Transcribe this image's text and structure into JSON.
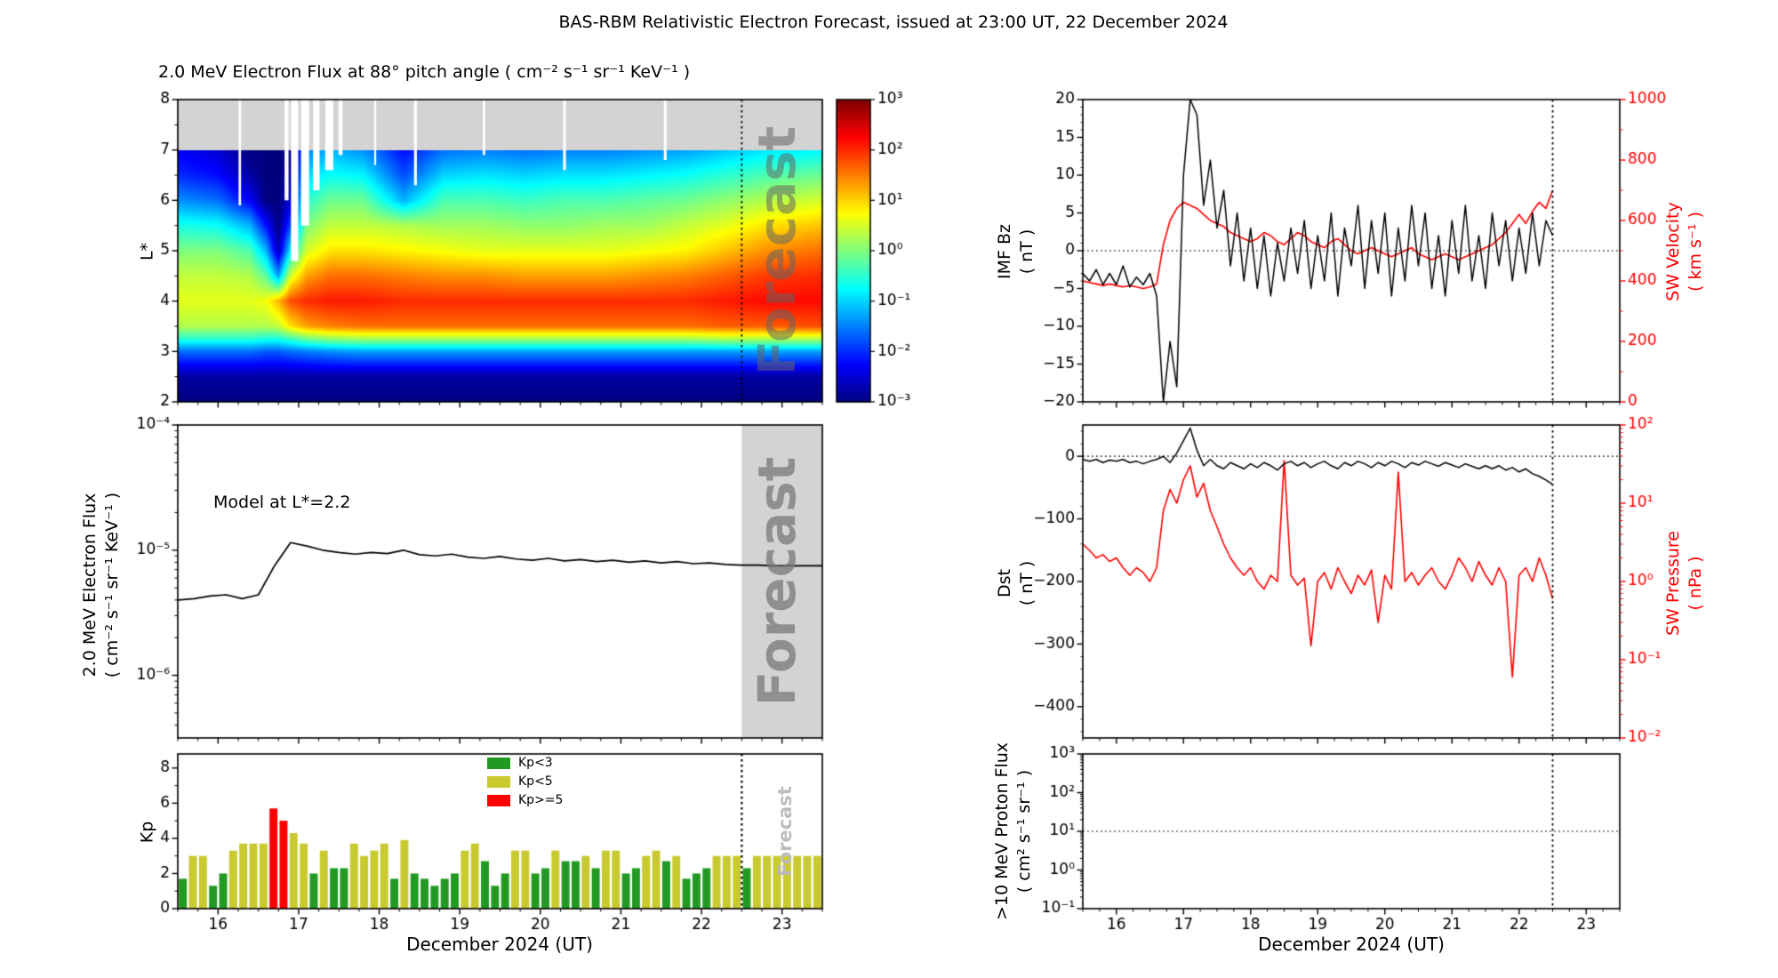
{
  "figure_title": "BAS-RBM Relativistic Electron Forecast, issued at 23:00 UT, 22 December 2024",
  "forecast_label": "Forecast",
  "time_axis": {
    "xlabel": "December 2024 (UT)",
    "range": [
      15.5,
      23.5
    ],
    "major_ticks": [
      16,
      17,
      18,
      19,
      20,
      21,
      22,
      23
    ],
    "forecast_start": 22.5
  },
  "colors": {
    "accent_red": "#ff0000",
    "kp_green": "#229922",
    "kp_yellow": "#c9c930",
    "kp_red": "#ff0000",
    "forecast_band": "#d3d3d3",
    "nodata_gray": "#d3d3d3"
  },
  "chart_data": [
    {
      "id": "electron_flux_heatmap",
      "type": "heatmap",
      "title": "2.0 MeV Electron Flux at 88° pitch angle ( cm⁻² s⁻¹ sr⁻¹ KeV⁻¹ )",
      "ylabel": "L*",
      "ylim": [
        2,
        8
      ],
      "y_ticks": [
        2,
        3,
        4,
        5,
        6,
        7,
        8
      ],
      "nodata_above_L": 7,
      "clim_log10": [
        -3,
        3
      ],
      "colorbar_ticks": [
        "10³",
        "10²",
        "10¹",
        "10⁰",
        "10⁻¹",
        "10⁻²",
        "10⁻³"
      ],
      "colorbar_tick_exps": [
        3,
        2,
        1,
        0,
        -1,
        -2,
        -3
      ],
      "forecast_line_t": 22.5,
      "t_values": [
        15.5,
        16.0,
        16.4,
        16.6,
        16.75,
        16.9,
        17.1,
        17.4,
        17.8,
        18.3,
        18.8,
        19.3,
        19.8,
        20.3,
        20.8,
        21.3,
        21.8,
        22.3,
        22.8,
        23.5
      ],
      "L_values": [
        2.0,
        2.5,
        3.0,
        3.25,
        3.5,
        4.0,
        4.5,
        5.0,
        5.5,
        6.0,
        6.5,
        7.0
      ],
      "log10_flux": [
        [
          -3.0,
          -3.0,
          -3.0,
          -3.0,
          -3.0,
          -3.0,
          -3.0,
          -3.0,
          -3.0,
          -3.0,
          -3.0,
          -3.0,
          -3.0,
          -3.0,
          -3.0,
          -3.0,
          -3.0,
          -3.0,
          -3.0,
          -3.0
        ],
        [
          -2.8,
          -2.8,
          -2.8,
          -2.8,
          -2.8,
          -2.8,
          -2.8,
          -2.8,
          -2.8,
          -2.8,
          -2.8,
          -2.8,
          -2.8,
          -2.8,
          -2.8,
          -2.8,
          -2.8,
          -2.8,
          -2.8,
          -2.8
        ],
        [
          -1.6,
          -1.6,
          -1.6,
          -1.7,
          -1.7,
          -1.6,
          -1.5,
          -1.4,
          -1.3,
          -1.3,
          -1.3,
          -1.3,
          -1.3,
          -1.3,
          -1.3,
          -1.3,
          -1.3,
          -1.3,
          -1.3,
          -1.3
        ],
        [
          -0.5,
          -0.5,
          -0.5,
          -0.6,
          -0.6,
          -0.4,
          -0.1,
          0.1,
          0.2,
          0.2,
          0.2,
          0.2,
          0.2,
          0.2,
          0.2,
          0.2,
          0.2,
          0.3,
          0.3,
          0.3
        ],
        [
          0.3,
          0.3,
          0.3,
          0.3,
          0.4,
          0.9,
          1.3,
          1.5,
          1.6,
          1.6,
          1.6,
          1.6,
          1.6,
          1.6,
          1.6,
          1.6,
          1.6,
          1.7,
          1.7,
          1.8
        ],
        [
          0.6,
          0.6,
          0.6,
          0.7,
          1.2,
          1.8,
          2.0,
          2.1,
          2.1,
          2.0,
          2.0,
          2.0,
          2.0,
          2.0,
          2.0,
          2.0,
          2.0,
          2.1,
          2.2,
          2.2
        ],
        [
          0.4,
          0.4,
          0.3,
          -0.2,
          -1.3,
          0.5,
          1.3,
          1.6,
          1.6,
          1.5,
          1.4,
          1.4,
          1.3,
          1.3,
          1.3,
          1.4,
          1.5,
          1.7,
          1.9,
          2.0
        ],
        [
          0.0,
          0.0,
          -0.3,
          -1.2,
          -2.7,
          -0.8,
          0.5,
          0.9,
          0.9,
          0.8,
          0.7,
          0.6,
          0.6,
          0.6,
          0.6,
          0.7,
          0.8,
          1.1,
          1.4,
          1.6
        ],
        [
          -0.6,
          -0.7,
          -1.2,
          -2.2,
          -3.0,
          -1.8,
          0.0,
          0.4,
          0.4,
          0.3,
          0.2,
          0.2,
          0.1,
          0.1,
          0.2,
          0.2,
          0.4,
          0.6,
          0.9,
          1.1
        ],
        [
          -1.4,
          -1.6,
          -2.3,
          -3.0,
          -3.0,
          -2.5,
          -0.5,
          -0.1,
          -0.1,
          -1.2,
          -0.3,
          -0.3,
          -0.4,
          -0.3,
          -0.3,
          -0.2,
          -0.1,
          0.1,
          0.3,
          0.5
        ],
        [
          -2.0,
          -2.2,
          -2.8,
          -3.0,
          -3.0,
          -2.8,
          -1.0,
          -0.7,
          -0.8,
          -1.8,
          -1.0,
          -0.9,
          -1.0,
          -0.9,
          -0.9,
          -0.8,
          -0.7,
          -0.5,
          -0.3,
          -0.1
        ],
        [
          -2.3,
          -2.5,
          -3.0,
          -3.0,
          -3.0,
          -3.0,
          -1.5,
          -1.2,
          -1.4,
          -2.2,
          -1.6,
          -1.5,
          -1.6,
          -1.5,
          -1.5,
          -1.4,
          -1.3,
          -1.1,
          -0.9,
          -0.8
        ]
      ],
      "data_gaps": [
        {
          "t": 16.27,
          "w": 0.03,
          "to_L": 5.9
        },
        {
          "t": 16.85,
          "w": 0.05,
          "to_L": 6.0
        },
        {
          "t": 16.95,
          "w": 0.09,
          "to_L": 4.8
        },
        {
          "t": 17.08,
          "w": 0.1,
          "to_L": 5.5
        },
        {
          "t": 17.22,
          "w": 0.08,
          "to_L": 6.2
        },
        {
          "t": 17.38,
          "w": 0.1,
          "to_L": 6.6
        },
        {
          "t": 17.52,
          "w": 0.05,
          "to_L": 6.9
        },
        {
          "t": 17.95,
          "w": 0.025,
          "to_L": 6.7
        },
        {
          "t": 18.45,
          "w": 0.035,
          "to_L": 6.3
        },
        {
          "t": 19.3,
          "w": 0.03,
          "to_L": 6.9
        },
        {
          "t": 20.3,
          "w": 0.035,
          "to_L": 6.6
        },
        {
          "t": 21.55,
          "w": 0.035,
          "to_L": 6.8
        }
      ]
    },
    {
      "id": "model_flux_line",
      "type": "line",
      "annotation": "Model at L*=2.2",
      "ylabel_line1": "2.0 MeV Electron Flux",
      "ylabel_line2": "( cm⁻² s⁻¹ sr⁻¹ KeV⁻¹ )",
      "y_ticks": [
        "10⁻⁴",
        "10⁻⁵",
        "10⁻⁶"
      ],
      "y_tick_exps": [
        -4,
        -5,
        -6
      ],
      "ylim_log10": [
        -6.5,
        -4
      ],
      "t_start": 15.5,
      "t_step": 0.2,
      "flux": [
        4e-06,
        4.1e-06,
        4.3e-06,
        4.4e-06,
        4.1e-06,
        4.4e-06,
        7.5e-06,
        1.15e-05,
        1.08e-05,
        1e-05,
        9.6e-06,
        9.3e-06,
        9.6e-06,
        9.4e-06,
        1e-05,
        9.2e-06,
        9e-06,
        9.3e-06,
        8.8e-06,
        8.6e-06,
        8.9e-06,
        8.5e-06,
        8.3e-06,
        8.6e-06,
        8.2e-06,
        8.4e-06,
        8.1e-06,
        8.3e-06,
        8e-06,
        8.2e-06,
        7.9e-06,
        8.1e-06,
        7.8e-06,
        7.9e-06,
        7.7e-06,
        7.6e-06,
        7.6e-06,
        7.5e-06,
        7.5e-06,
        7.5e-06,
        7.5e-06
      ]
    },
    {
      "id": "kp_index",
      "type": "bar",
      "ylabel": "Kp",
      "ylim": [
        0,
        8.8
      ],
      "y_ticks": [
        0,
        2,
        4,
        6,
        8
      ],
      "t_start": 15.5,
      "bar_dt": 0.125,
      "thresholds": {
        "yellow": 3,
        "red": 5
      },
      "values": [
        1.7,
        3.0,
        3.0,
        1.3,
        2.0,
        3.3,
        3.7,
        3.7,
        3.7,
        5.7,
        5.0,
        4.3,
        3.7,
        2.0,
        3.3,
        2.3,
        2.3,
        3.7,
        3.0,
        3.3,
        3.7,
        1.7,
        3.9,
        2.0,
        1.7,
        1.3,
        1.7,
        2.0,
        3.3,
        3.7,
        2.7,
        1.3,
        2.0,
        3.3,
        3.3,
        2.0,
        2.3,
        3.3,
        2.7,
        2.7,
        3.0,
        2.3,
        3.3,
        3.3,
        2.0,
        2.3,
        3.0,
        3.3,
        2.7,
        3.0,
        1.7,
        2.0,
        2.3,
        3.0,
        3.0,
        3.0,
        2.3,
        3.0,
        3.0,
        3.0,
        3.0,
        3.0,
        3.0,
        3.0
      ],
      "legend": [
        {
          "label": "Kp<3",
          "color_hex": "#229922"
        },
        {
          "label": "Kp<5",
          "color_hex": "#c9c930"
        },
        {
          "label": "Kp>=5",
          "color_hex": "#ff0000"
        }
      ]
    },
    {
      "id": "imf_bz_sw_velocity",
      "type": "line",
      "hline": 0,
      "left": {
        "ylabel_line1": "IMF Bz",
        "ylabel_line2": "( nT )",
        "ylim": [
          -20,
          20
        ],
        "ticks": [
          -20,
          -15,
          -10,
          -5,
          0,
          5,
          10,
          15,
          20
        ],
        "series": {
          "name": "IMF Bz",
          "color": "black",
          "t_start": 15.5,
          "t_step": 0.1,
          "values": [
            -3,
            -4,
            -2.5,
            -4.5,
            -3,
            -4.5,
            -2,
            -4.8,
            -3.5,
            -4.5,
            -3,
            -6,
            -20,
            -12,
            -18,
            10,
            20,
            18,
            6,
            12,
            3,
            8,
            -2,
            5,
            -4,
            3,
            -5,
            2,
            -6,
            1,
            -4,
            3,
            -3,
            4,
            -5,
            2,
            -4,
            5,
            -6,
            3,
            -2,
            6,
            -5,
            4,
            -3,
            5,
            -6,
            3,
            -4,
            6,
            -2,
            5,
            -5,
            2,
            -6,
            4,
            -3,
            6,
            -4,
            2,
            -5,
            5,
            -2,
            4,
            -4,
            3,
            -3,
            5,
            -2,
            4,
            2
          ]
        }
      },
      "right": {
        "ylabel_line1": "SW Velocity",
        "ylabel_line2": "( km s⁻¹ )",
        "ylim": [
          0,
          1000
        ],
        "ticks": [
          0,
          200,
          400,
          600,
          800,
          1000
        ],
        "series": {
          "name": "SW Velocity",
          "color": "red",
          "t_start": 15.5,
          "t_step": 0.1,
          "values": [
            400,
            395,
            390,
            385,
            390,
            385,
            380,
            385,
            380,
            375,
            380,
            390,
            520,
            600,
            640,
            660,
            650,
            640,
            620,
            600,
            590,
            580,
            560,
            550,
            540,
            530,
            540,
            560,
            550,
            530,
            520,
            540,
            560,
            550,
            530,
            520,
            510,
            530,
            540,
            520,
            500,
            490,
            500,
            510,
            500,
            490,
            480,
            490,
            500,
            510,
            490,
            480,
            470,
            480,
            490,
            480,
            470,
            480,
            490,
            500,
            510,
            520,
            540,
            560,
            590,
            620,
            590,
            630,
            660,
            640,
            700
          ]
        }
      }
    },
    {
      "id": "dst_sw_pressure",
      "type": "line",
      "hline": 0,
      "left": {
        "ylabel_line1": "Dst",
        "ylabel_line2": "( nT )",
        "ylim": [
          50,
          -450
        ],
        "ticks": [
          0,
          -100,
          -200,
          -300,
          -400
        ],
        "series": {
          "name": "Dst",
          "color": "black",
          "t_start": 15.5,
          "t_step": 0.1,
          "values": [
            -5,
            -8,
            -5,
            -10,
            -6,
            -8,
            -5,
            -10,
            -8,
            -12,
            -8,
            -5,
            0,
            -10,
            5,
            25,
            45,
            10,
            -15,
            -5,
            -15,
            -20,
            -10,
            -15,
            -20,
            -12,
            -18,
            -10,
            -15,
            -22,
            -12,
            -8,
            -15,
            -10,
            -18,
            -12,
            -8,
            -15,
            -20,
            -10,
            -15,
            -8,
            -12,
            -18,
            -10,
            -15,
            -8,
            -12,
            -18,
            -10,
            -14,
            -8,
            -12,
            -16,
            -10,
            -14,
            -18,
            -12,
            -16,
            -20,
            -15,
            -20,
            -15,
            -22,
            -18,
            -25,
            -20,
            -28,
            -32,
            -38,
            -45
          ]
        }
      },
      "right": {
        "ylabel_line1": "SW Pressure",
        "ylabel_line2": "( nPa )",
        "ylim_log10": [
          -2,
          2
        ],
        "ticks": [
          "10²",
          "10¹",
          "10⁰",
          "10⁻¹",
          "10⁻²"
        ],
        "tick_exps": [
          2,
          1,
          0,
          -1,
          -2
        ],
        "series": {
          "name": "SW Pressure",
          "color": "red",
          "t_start": 15.5,
          "t_step": 0.1,
          "values": [
            3,
            2.5,
            2,
            2.2,
            1.8,
            2,
            1.5,
            1.2,
            1.5,
            1.3,
            1.0,
            1.5,
            8,
            15,
            10,
            20,
            30,
            12,
            18,
            8,
            5,
            3,
            2,
            1.5,
            1.2,
            1.5,
            1.0,
            0.8,
            1.2,
            1.0,
            35,
            1.2,
            0.9,
            1.1,
            0.15,
            1.0,
            1.3,
            0.8,
            1.5,
            1.0,
            0.7,
            1.2,
            0.9,
            1.4,
            0.3,
            1.2,
            0.8,
            25,
            1.0,
            1.3,
            0.9,
            1.2,
            1.5,
            1.0,
            0.8,
            1.2,
            2.0,
            1.5,
            1.0,
            1.8,
            1.2,
            0.9,
            1.5,
            1.0,
            0.06,
            1.2,
            1.5,
            1.0,
            2.0,
            1.2,
            0.6
          ]
        }
      }
    },
    {
      "id": "proton_flux",
      "type": "line",
      "ylabel_line1": ">10 MeV Proton Flux",
      "ylabel_line2": "( cm² s⁻¹ sr⁻¹ )",
      "ylim_log10": [
        -1,
        3
      ],
      "y_ticks": [
        "10³",
        "10²",
        "10¹",
        "10⁰",
        "10⁻¹"
      ],
      "y_tick_exps": [
        3,
        2,
        1,
        0,
        -1
      ],
      "hline_log10": 1,
      "series": []
    }
  ]
}
